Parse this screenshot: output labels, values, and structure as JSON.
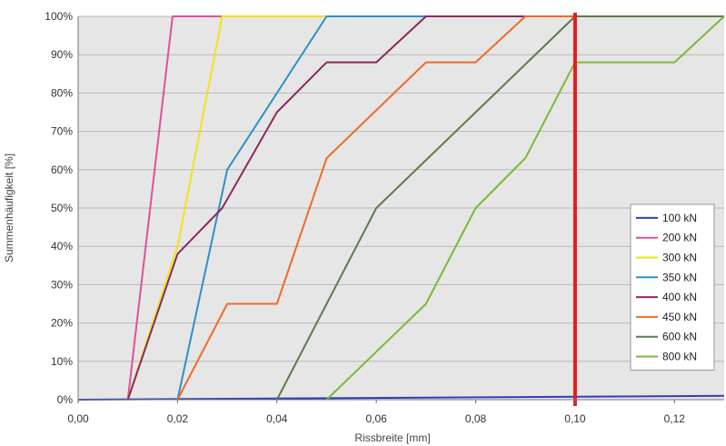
{
  "chart_data": {
    "type": "line",
    "xlabel": "Rissbreite [mm]",
    "ylabel": "Summenhäufigkeit [%]",
    "xlim": [
      0,
      0.13
    ],
    "ylim": [
      0,
      100
    ],
    "x_ticks": [
      "0,00",
      "0,02",
      "0,04",
      "0,06",
      "0,08",
      "0,10",
      "0,12"
    ],
    "y_ticks": [
      "0%",
      "10%",
      "20%",
      "30%",
      "40%",
      "50%",
      "60%",
      "70%",
      "80%",
      "90%",
      "100%"
    ],
    "grid": true,
    "legend_position": "bottom-right",
    "series": [
      {
        "name": "100 kN",
        "color": "#2a3fbf",
        "points": [
          [
            0,
            0
          ],
          [
            0.13,
            1
          ]
        ]
      },
      {
        "name": "200 kN",
        "color": "#e0509a",
        "points": [
          [
            0.01,
            0
          ],
          [
            0.019,
            100
          ],
          [
            0.13,
            100
          ]
        ]
      },
      {
        "name": "300 kN",
        "color": "#f2e21c",
        "points": [
          [
            0.01,
            0
          ],
          [
            0.02,
            40
          ],
          [
            0.029,
            100
          ],
          [
            0.13,
            100
          ]
        ]
      },
      {
        "name": "350 kN",
        "color": "#2f8fc8",
        "points": [
          [
            0.02,
            0
          ],
          [
            0.03,
            60
          ],
          [
            0.05,
            100
          ],
          [
            0.13,
            100
          ]
        ]
      },
      {
        "name": "400 kN",
        "color": "#8b2a5c",
        "points": [
          [
            0.01,
            0
          ],
          [
            0.02,
            38
          ],
          [
            0.029,
            50
          ],
          [
            0.04,
            75
          ],
          [
            0.05,
            88
          ],
          [
            0.06,
            88
          ],
          [
            0.07,
            100
          ],
          [
            0.13,
            100
          ]
        ]
      },
      {
        "name": "450 kN",
        "color": "#f06a2a",
        "points": [
          [
            0.02,
            0
          ],
          [
            0.03,
            25
          ],
          [
            0.04,
            25
          ],
          [
            0.05,
            63
          ],
          [
            0.07,
            88
          ],
          [
            0.08,
            88
          ],
          [
            0.09,
            100
          ],
          [
            0.13,
            100
          ]
        ]
      },
      {
        "name": "600 kN",
        "color": "#5e7a4a",
        "points": [
          [
            0.04,
            0
          ],
          [
            0.06,
            50
          ],
          [
            0.1,
            100
          ],
          [
            0.13,
            100
          ]
        ]
      },
      {
        "name": "800 kN",
        "color": "#7bb83a",
        "points": [
          [
            0.05,
            0
          ],
          [
            0.07,
            25
          ],
          [
            0.08,
            50
          ],
          [
            0.09,
            63
          ],
          [
            0.1,
            88
          ],
          [
            0.12,
            88
          ],
          [
            0.13,
            100
          ]
        ]
      }
    ],
    "annotations": [
      {
        "type": "vertical-line",
        "x": 0.1,
        "color": "#e81c1c"
      }
    ]
  }
}
